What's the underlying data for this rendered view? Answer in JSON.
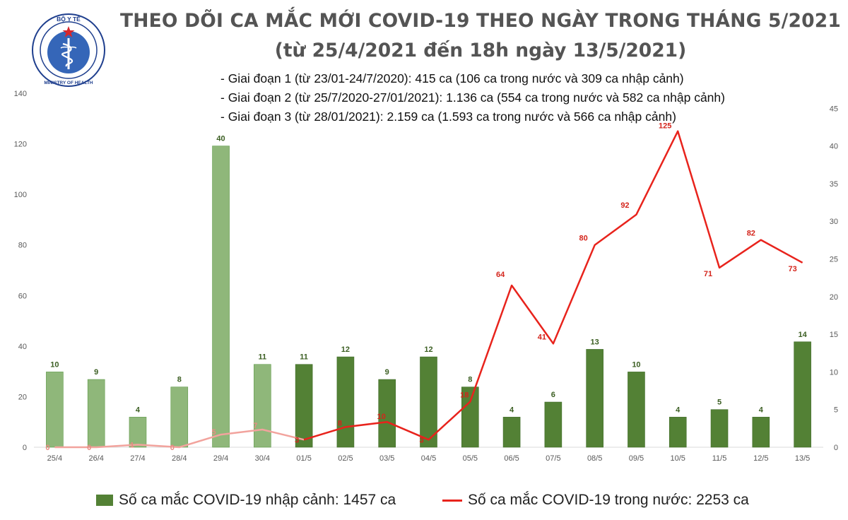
{
  "header": {
    "logo": {
      "icon": "ministry-of-health-emblem-icon",
      "top_text": "BỘ Y TẾ",
      "bottom_text": "MINISTRY OF HEALTH",
      "colors": {
        "ring": "#1f3f8e",
        "star": "#d8262b",
        "inner": "#3566b8"
      }
    },
    "title": "THEO DÕI CA MẮC MỚI COVID-19 THEO NGÀY TRONG THÁNG 5/2021",
    "subtitle": "(từ 25/4/2021 đến 18h ngày 13/5/2021)",
    "notes": [
      "- Giai đoạn 1 (từ 23/01-24/7/2020): 415 ca (106 ca trong nước và 309 ca nhập cảnh)",
      "- Giai đoạn 2 (từ 25/7/2020-27/01/2021): 1.136 ca (554 ca trong nước và 582 ca nhập cảnh)",
      "- Giai đoạn 3 (từ 28/01/2021): 2.159 ca (1.593 ca trong nước và 566 ca nhập cảnh)"
    ]
  },
  "chart_data": {
    "type": "bar",
    "combo": "bar + line on secondary axis",
    "categories": [
      "25/4",
      "26/4",
      "27/4",
      "28/4",
      "29/4",
      "30/4",
      "01/5",
      "02/5",
      "03/5",
      "04/5",
      "05/5",
      "06/5",
      "07/5",
      "08/5",
      "09/5",
      "10/5",
      "11/5",
      "12/5",
      "13/5"
    ],
    "series": [
      {
        "name": "Số ca mắc COVID-19 nhập cảnh: 1457 ca",
        "type": "bar",
        "axis": "right",
        "values": [
          10,
          9,
          4,
          8,
          40,
          11,
          11,
          12,
          9,
          12,
          8,
          4,
          6,
          13,
          10,
          4,
          5,
          4,
          14
        ],
        "color": "#538135",
        "faded_color": "#8fb77a",
        "faded_count": 6
      },
      {
        "name": "Số ca mắc COVID-19 trong nước: 2253 ca",
        "type": "line",
        "axis": "left",
        "values": [
          0,
          0,
          1,
          0,
          5,
          7,
          3,
          8,
          10,
          3,
          18,
          64,
          41,
          80,
          92,
          125,
          71,
          82,
          73
        ],
        "color": "#e8231c",
        "faded_color": "#f2a39d",
        "faded_count": 6
      }
    ],
    "y_left": {
      "ticks": [
        0,
        20,
        40,
        60,
        80,
        100,
        120,
        140
      ],
      "range": [
        0,
        140
      ]
    },
    "y_right": {
      "ticks": [
        0,
        5,
        10,
        15,
        20,
        25,
        30,
        35,
        40,
        45
      ],
      "range": [
        0,
        47
      ]
    },
    "grid": false,
    "legend_position": "bottom"
  }
}
